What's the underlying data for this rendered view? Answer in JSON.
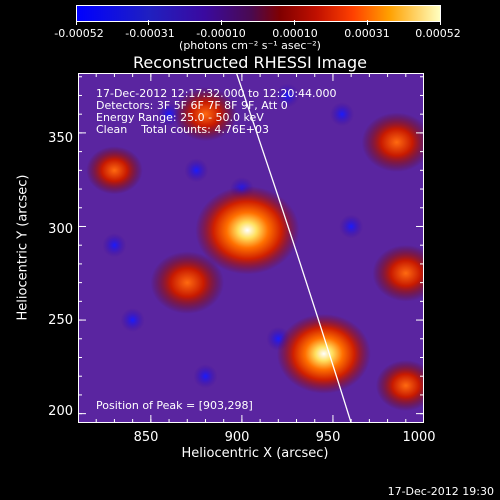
{
  "colorbar": {
    "ticks": [
      "-0.00052",
      "-0.00031",
      "-0.00010",
      "0.00010",
      "0.00031",
      "0.00052"
    ],
    "unit_label": "(photons cm⁻² s⁻¹ asec⁻²)"
  },
  "plot": {
    "title": "Reconstructed RHESSI Image",
    "xlabel": "Heliocentric X (arcsec)",
    "ylabel": "Heliocentric Y (arcsec)",
    "xticks": [
      "850",
      "900",
      "950",
      "1000"
    ],
    "yticks": [
      "350",
      "300",
      "250",
      "200"
    ]
  },
  "info": {
    "line1": "17-Dec-2012 12:17:32.000 to 12:20:44.000",
    "line2": "Detectors: 3F 5F 6F 7F 8F 9F, Att 0",
    "line3": "Energy Range: 25.0 - 50.0 keV",
    "line4": "Clean    Total counts: 4.76E+03",
    "peak": "Position of Peak = [903,298]"
  },
  "footer": {
    "timestamp": "17-Dec-2012 19:30"
  },
  "chart_data": {
    "type": "heatmap",
    "title": "Reconstructed RHESSI Image",
    "xlabel": "Heliocentric X (arcsec)",
    "ylabel": "Heliocentric Y (arcsec)",
    "xlim": [
      810,
      1000
    ],
    "ylim": [
      195,
      382
    ],
    "color_range": [
      -0.00052,
      0.00052
    ],
    "colormap": [
      "#0000ff",
      "#3c0aa6",
      "#6c2fb3",
      "#a01010",
      "#ff4a00",
      "#ffd000",
      "#ffffff"
    ],
    "sources": [
      {
        "x": 903,
        "y": 298,
        "strength": 1.0
      },
      {
        "x": 945,
        "y": 232,
        "strength": 0.85
      },
      {
        "x": 870,
        "y": 270,
        "strength": 0.55
      },
      {
        "x": 985,
        "y": 345,
        "strength": 0.5
      },
      {
        "x": 990,
        "y": 275,
        "strength": 0.45
      },
      {
        "x": 880,
        "y": 360,
        "strength": 0.4
      },
      {
        "x": 990,
        "y": 215,
        "strength": 0.35
      },
      {
        "x": 830,
        "y": 330,
        "strength": 0.3
      }
    ]
  }
}
